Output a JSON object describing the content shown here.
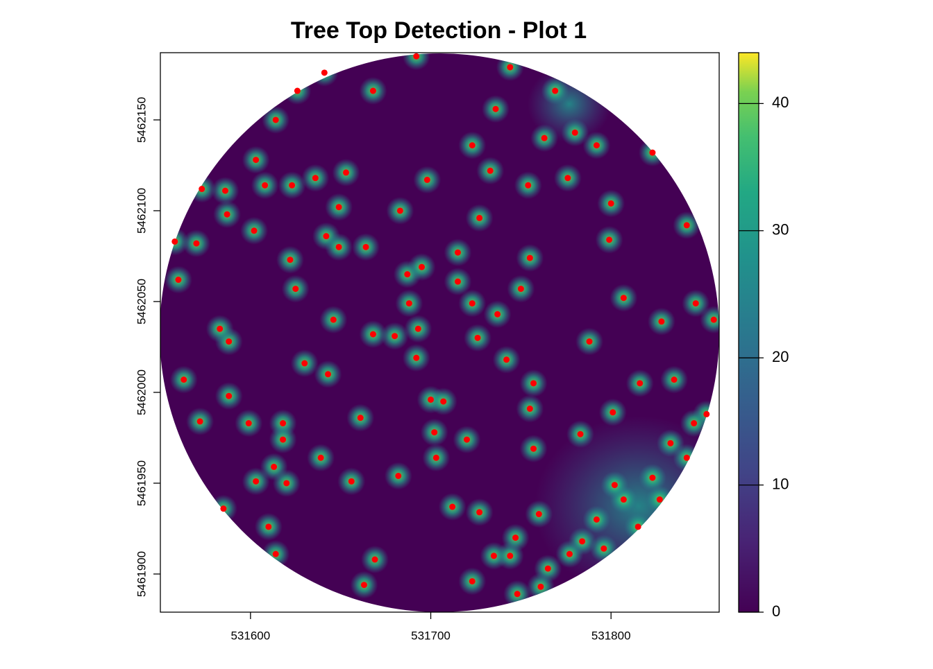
{
  "chart_data": {
    "type": "scatter",
    "title": "Tree Top Detection - Plot 1",
    "color": "#ff0000",
    "x": [
      531744,
      531668,
      531736,
      531614,
      531723,
      531603,
      531636,
      531623,
      531698,
      531733,
      531653,
      531754,
      531776,
      531800,
      531586,
      531649,
      531683,
      531587,
      531727,
      531602,
      531570,
      531799,
      531715,
      531755,
      531622,
      531687,
      531695,
      531560,
      531625,
      531750,
      531723,
      531807,
      531847,
      531828,
      531668,
      531680,
      531693,
      531726,
      531788,
      531588,
      531742,
      531643,
      531563,
      531757,
      531816,
      531835,
      531700,
      531707,
      531588,
      531755,
      531801,
      531572,
      531618,
      531702,
      531720,
      531783,
      531618,
      531757,
      531639,
      531613,
      531603,
      531620,
      531712,
      531727,
      531760,
      531585,
      531610,
      531735,
      531744,
      531723,
      531614,
      531663,
      531748,
      531669,
      531692,
      531641,
      531626,
      531823,
      531842,
      531558,
      531857,
      531853,
      531792,
      531780,
      531769,
      531763,
      531833,
      531823,
      531807,
      531792,
      531784,
      531777,
      531765,
      531761,
      531796,
      531815,
      531827,
      531842,
      531846,
      531802,
      531646,
      531630,
      531692,
      531661,
      531715,
      531737,
      531688,
      531642,
      531649,
      531599,
      531656,
      531682,
      531703,
      531747,
      531583,
      531573,
      531608,
      531664
    ],
    "y": [
      5462179,
      5462166,
      5462156,
      5462150,
      5462136,
      5462128,
      5462118,
      5462114,
      5462117,
      5462122,
      5462121,
      5462114,
      5462118,
      5462104,
      5462111,
      5462102,
      5462100,
      5462098,
      5462096,
      5462089,
      5462082,
      5462084,
      5462077,
      5462074,
      5462073,
      5462065,
      5462069,
      5462062,
      5462057,
      5462057,
      5462049,
      5462052,
      5462049,
      5462039,
      5462032,
      5462031,
      5462035,
      5462030,
      5462028,
      5462028,
      5462018,
      5462010,
      5462007,
      5462005,
      5462005,
      5462007,
      5461996,
      5461995,
      5461998,
      5461991,
      5461989,
      5461984,
      5461983,
      5461978,
      5461974,
      5461977,
      5461974,
      5461969,
      5461964,
      5461959,
      5461951,
      5461950,
      5461937,
      5461934,
      5461933,
      5461936,
      5461926,
      5461910,
      5461910,
      5461896,
      5461911,
      5461894,
      5461889,
      5461908,
      5462185,
      5462176,
      5462166,
      5462132,
      5462092,
      5462083,
      5462040,
      5461988,
      5462136,
      5462143,
      5462166,
      5462140,
      5461972,
      5461953,
      5461941,
      5461930,
      5461918,
      5461911,
      5461903,
      5461893,
      5461914,
      5461926,
      5461941,
      5461964,
      5461983,
      5461949,
      5462040,
      5462016,
      5462019,
      5461986,
      5462061,
      5462043,
      5462049,
      5462086,
      5462080,
      5461983,
      5461951,
      5461954,
      5461964,
      5461920,
      5462035,
      5462112,
      5462114,
      5462080
    ],
    "xlim": [
      531550,
      531860
    ],
    "xticks": [
      531600,
      531700,
      531800
    ],
    "ylim": [
      5461879,
      5462187
    ],
    "yticks": [
      5461900,
      5461950,
      5462000,
      5462050,
      5462100,
      5462150
    ],
    "colorbar": {
      "lim": [
        0,
        44
      ],
      "ticks": [
        0,
        10,
        20,
        30,
        40
      ]
    }
  }
}
